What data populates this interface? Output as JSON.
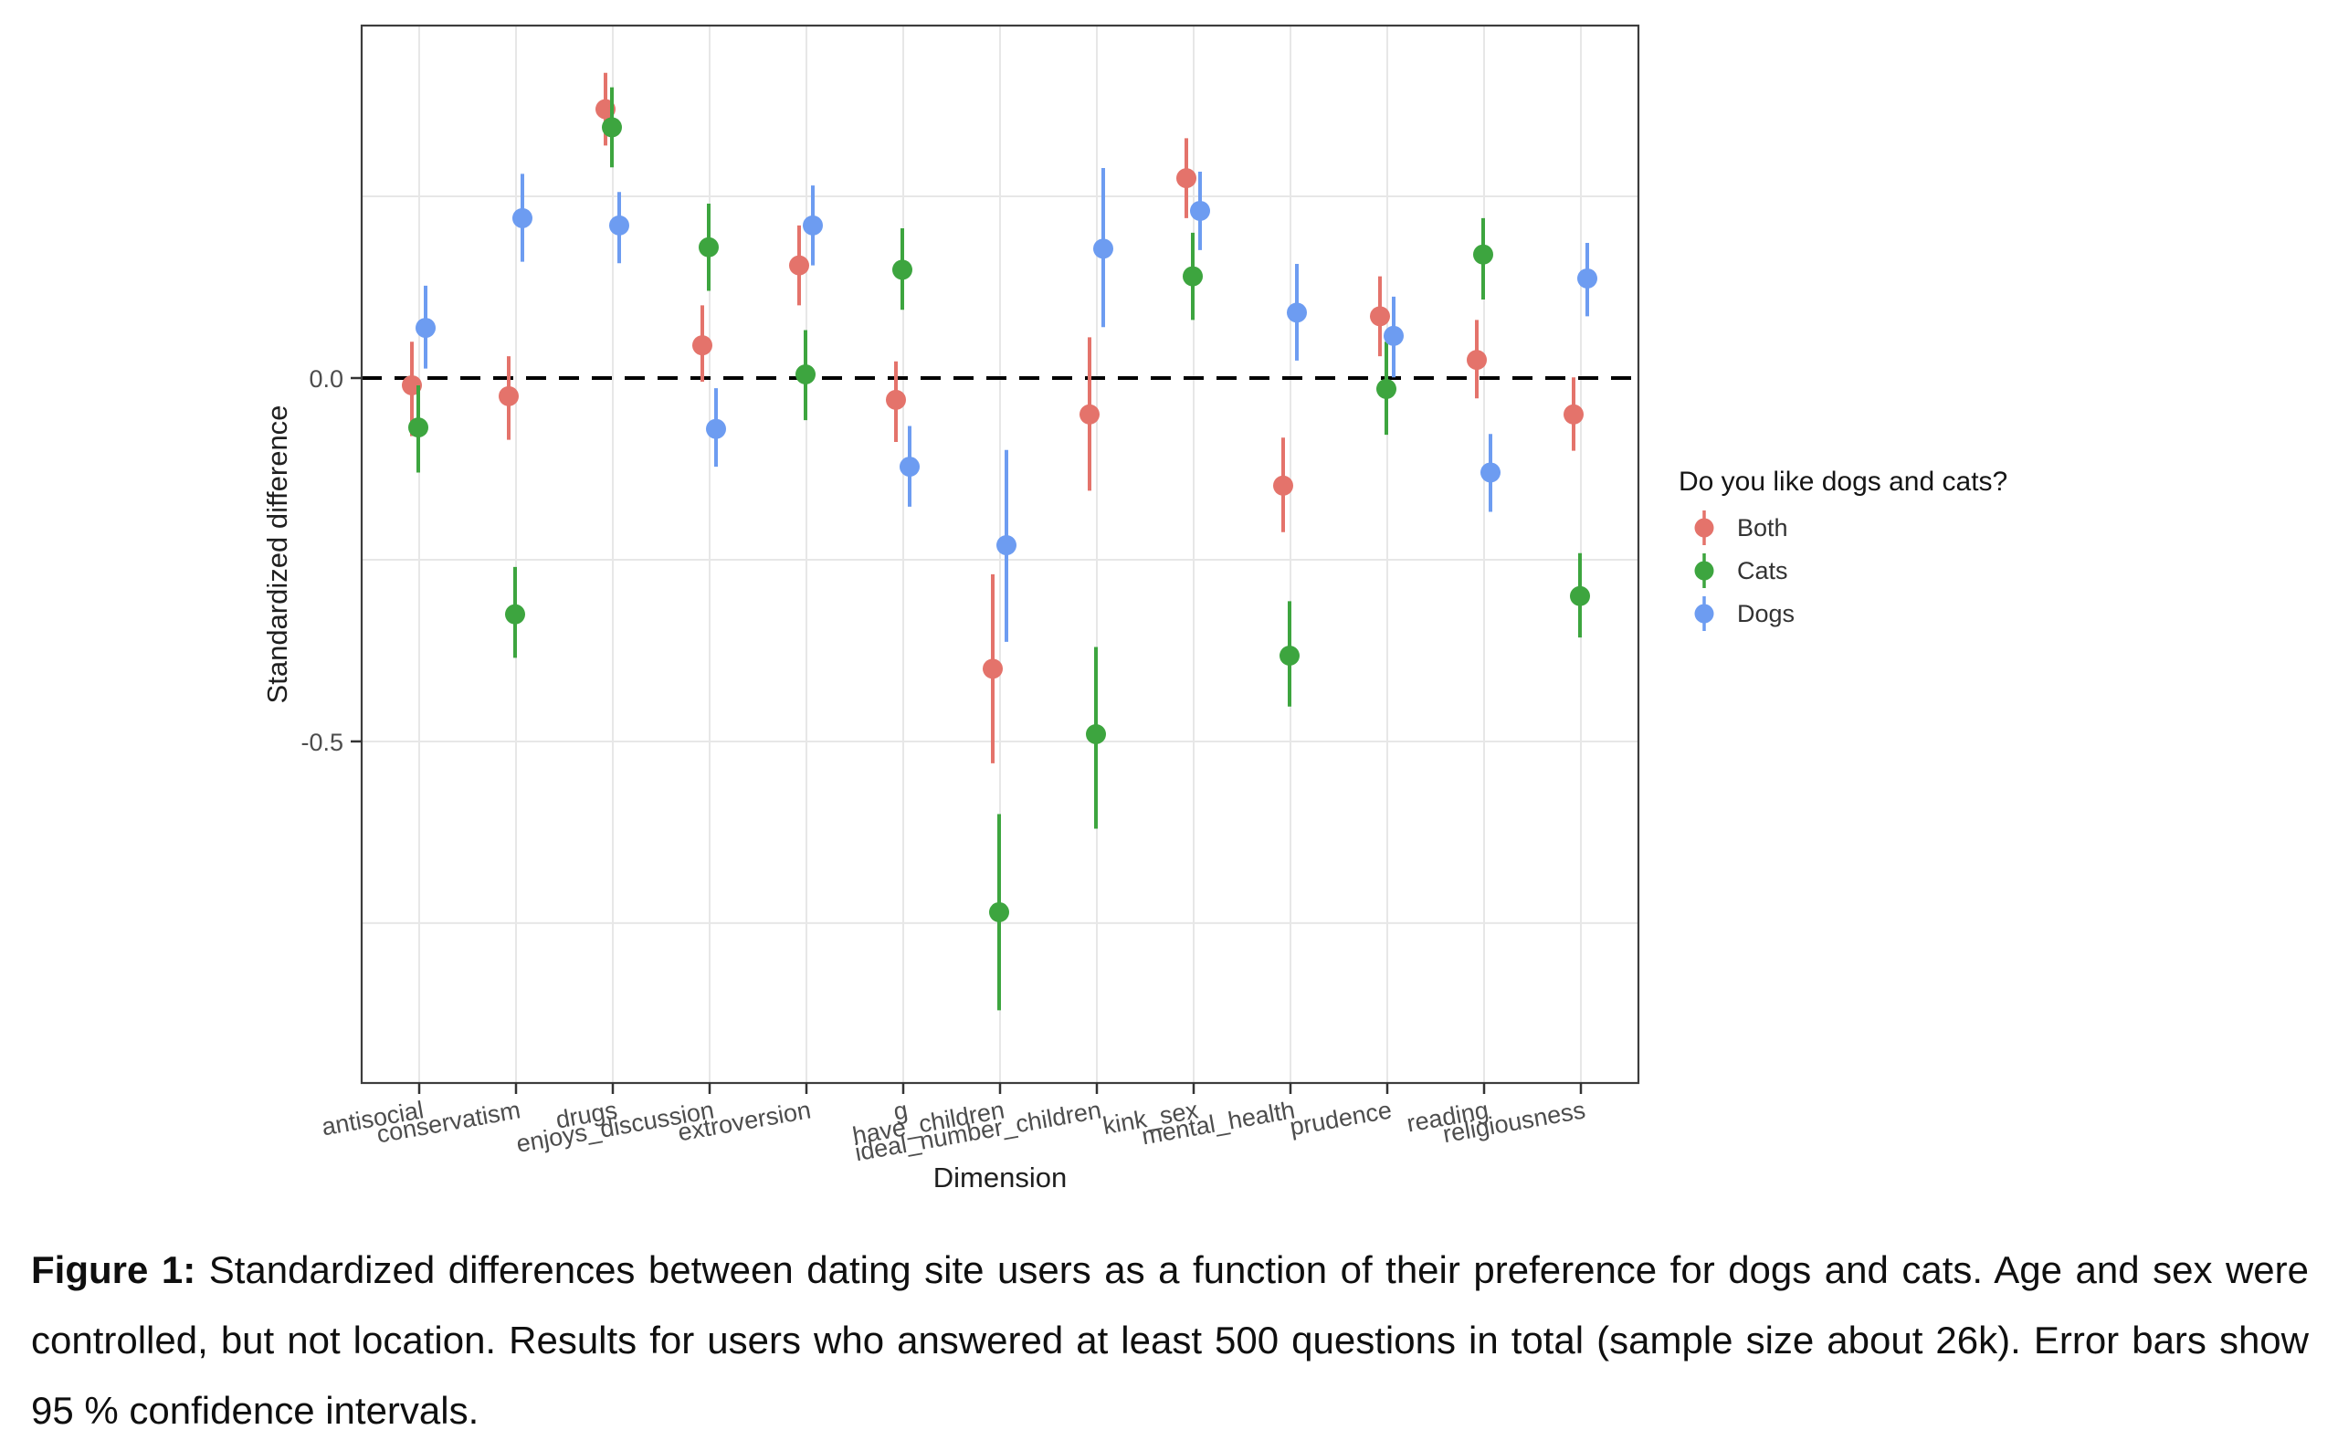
{
  "figure": {
    "caption_label": "Figure 1:",
    "caption_text": " Standardized differences between dating site users as a function of their preference for dogs and cats. Age and sex were controlled, but not location. Results for users who answered at least 500 questions in total (sample size about 26k). Error bars show 95 % confidence intervals."
  },
  "chart_data": {
    "type": "scatter",
    "subtype": "pointrange-with-95ci",
    "title": "",
    "xlabel": "Dimension",
    "ylabel": "Standardized difference",
    "ylim": [
      -0.97,
      0.485
    ],
    "yticks": [
      0.0,
      -0.5
    ],
    "ytick_labels": [
      "0.0",
      "-0.5"
    ],
    "gridlines_y": [
      0.25,
      -0.25,
      -0.5,
      -0.75
    ],
    "zero_line": {
      "value": 0.0,
      "style": "dashed",
      "color": "#000000"
    },
    "grid_color": "#e7e7e7",
    "categories": [
      "antisocial",
      "conservatism",
      "drugs",
      "enjoys_discussion",
      "extroversion",
      "g",
      "have_children",
      "ideal_number_children",
      "kink_sex",
      "mental_health",
      "prudence",
      "reading",
      "religiousness"
    ],
    "legend": {
      "title": "Do you like dogs and cats?",
      "position": "right",
      "entries": [
        "Both",
        "Cats",
        "Dogs"
      ]
    },
    "series": [
      {
        "name": "Both",
        "color": "#e4736b",
        "values": [
          -0.01,
          -0.025,
          0.37,
          0.045,
          0.155,
          -0.03,
          -0.4,
          -0.05,
          0.275,
          -0.148,
          0.085,
          0.025,
          -0.05
        ],
        "ci_low": [
          -0.08,
          -0.085,
          0.32,
          -0.005,
          0.1,
          -0.088,
          -0.53,
          -0.155,
          0.22,
          -0.212,
          0.03,
          -0.028,
          -0.1
        ],
        "ci_high": [
          0.05,
          0.03,
          0.42,
          0.1,
          0.21,
          0.023,
          -0.27,
          0.056,
          0.33,
          -0.082,
          0.14,
          0.08,
          0.001
        ]
      },
      {
        "name": "Cats",
        "color": "#3da53f",
        "values": [
          -0.068,
          -0.325,
          0.345,
          0.18,
          0.005,
          0.149,
          -0.735,
          -0.49,
          0.14,
          -0.382,
          -0.015,
          0.17,
          -0.3
        ],
        "ci_low": [
          -0.13,
          -0.385,
          0.29,
          0.12,
          -0.058,
          0.094,
          -0.87,
          -0.62,
          0.08,
          -0.452,
          -0.078,
          0.108,
          -0.357
        ],
        "ci_high": [
          -0.01,
          -0.26,
          0.4,
          0.24,
          0.066,
          0.206,
          -0.6,
          -0.37,
          0.2,
          -0.307,
          0.05,
          0.22,
          -0.241
        ]
      },
      {
        "name": "Dogs",
        "color": "#6d9cf1",
        "values": [
          0.069,
          0.22,
          0.21,
          -0.07,
          0.21,
          -0.122,
          -0.23,
          0.178,
          0.23,
          0.09,
          0.058,
          -0.13,
          0.137
        ],
        "ci_low": [
          0.013,
          0.16,
          0.158,
          -0.122,
          0.155,
          -0.177,
          -0.363,
          0.07,
          0.176,
          0.024,
          0.001,
          -0.184,
          0.085
        ],
        "ci_high": [
          0.127,
          0.281,
          0.256,
          -0.014,
          0.265,
          -0.066,
          -0.099,
          0.289,
          0.284,
          0.157,
          0.112,
          -0.077,
          0.186
        ]
      }
    ]
  }
}
